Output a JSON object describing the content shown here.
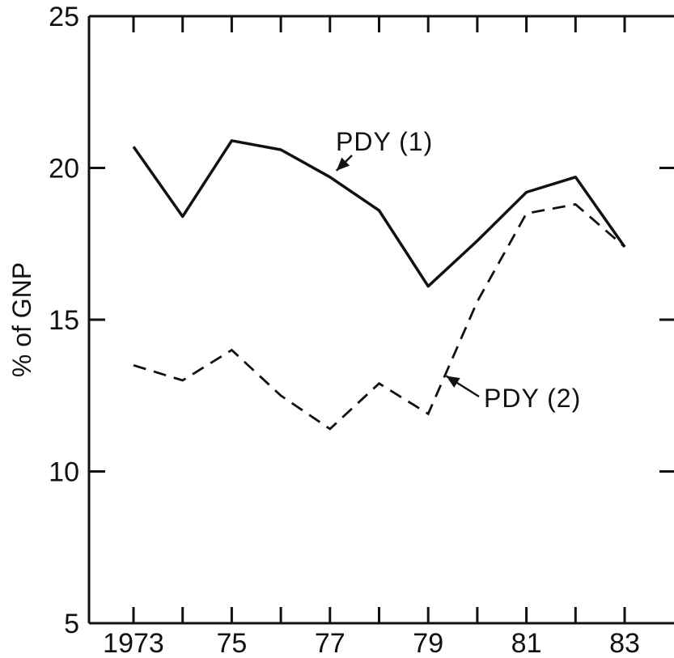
{
  "chart_data": {
    "type": "line",
    "title": "",
    "xlabel": "",
    "ylabel": "% of GNP",
    "x": [
      1973,
      1974,
      1975,
      1976,
      1977,
      1978,
      1979,
      1980,
      1981,
      1982,
      1983
    ],
    "xlim": [
      1973,
      1983
    ],
    "ylim": [
      5,
      25
    ],
    "x_ticks": [
      1973,
      1974,
      1975,
      1976,
      1977,
      1978,
      1979,
      1980,
      1981,
      1982,
      1983
    ],
    "x_tick_labels": [
      {
        "x": 1973,
        "label": "1973"
      },
      {
        "x": 1975,
        "label": "75"
      },
      {
        "x": 1977,
        "label": "77"
      },
      {
        "x": 1979,
        "label": "79"
      },
      {
        "x": 1981,
        "label": "81"
      },
      {
        "x": 1983,
        "label": "83"
      }
    ],
    "y_ticks": [
      5,
      10,
      15,
      20,
      25
    ],
    "y_tick_labels": [
      "5",
      "10",
      "15",
      "20",
      "25"
    ],
    "grid": false,
    "series": [
      {
        "name": "PDY (1)",
        "style": "solid",
        "values": [
          20.7,
          18.4,
          20.9,
          20.6,
          19.7,
          18.6,
          16.1,
          17.6,
          19.2,
          19.7,
          17.4
        ]
      },
      {
        "name": "PDY (2)",
        "style": "dashed",
        "values": [
          13.5,
          13.0,
          14.0,
          12.5,
          11.4,
          12.9,
          11.9,
          15.6,
          18.5,
          18.8,
          17.4
        ]
      }
    ],
    "colors": {
      "line": "#111111",
      "background": "#ffffff"
    }
  }
}
